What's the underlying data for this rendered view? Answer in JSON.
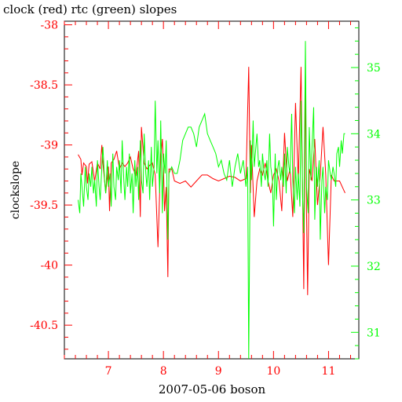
{
  "chart_data": {
    "type": "line",
    "title": "clock (red) rtc (green) slopes",
    "xlabel": "2007-05-06 boson",
    "ylabel": "clockslope",
    "xlim": [
      6.2,
      11.55
    ],
    "ylim_left": [
      -40.78,
      -37.97
    ],
    "ylim_right": [
      30.6,
      35.7
    ],
    "x_ticks": [
      "7",
      "8",
      "9",
      "10",
      "11"
    ],
    "x_tick_values": [
      7,
      8,
      9,
      10,
      11
    ],
    "y_ticks_left": [
      "-38",
      "-38.5",
      "-39",
      "-39.5",
      "-40",
      "-40.5"
    ],
    "y_tick_values_left": [
      -38,
      -38.5,
      -39,
      -39.5,
      -40,
      -40.5
    ],
    "y_ticks_right": [
      "35",
      "34",
      "33",
      "32",
      "31"
    ],
    "y_tick_values_right": [
      35,
      34,
      33,
      32,
      31
    ],
    "grid": false,
    "colors": {
      "clock": "#ff0000",
      "rtc": "#00ff00",
      "axes": "#000000"
    },
    "series": [
      {
        "name": "clock",
        "axis": "left",
        "color": "#ff0000",
        "x": [
          6.45,
          6.5,
          6.52,
          6.55,
          6.6,
          6.62,
          6.65,
          6.7,
          6.75,
          6.8,
          6.85,
          6.88,
          6.9,
          6.95,
          7.0,
          7.02,
          7.05,
          7.1,
          7.15,
          7.2,
          7.25,
          7.3,
          7.35,
          7.4,
          7.45,
          7.5,
          7.55,
          7.58,
          7.6,
          7.65,
          7.7,
          7.75,
          7.8,
          7.85,
          7.9,
          7.95,
          7.98,
          8.0,
          8.02,
          8.05,
          8.08,
          8.1,
          8.15,
          8.2,
          8.3,
          8.4,
          8.5,
          8.6,
          8.7,
          8.8,
          8.9,
          9.0,
          9.1,
          9.2,
          9.3,
          9.4,
          9.5,
          9.55,
          9.58,
          9.6,
          9.65,
          9.7,
          9.75,
          9.8,
          9.85,
          9.9,
          9.95,
          10.0,
          10.05,
          10.1,
          10.15,
          10.2,
          10.25,
          10.3,
          10.35,
          10.4,
          10.45,
          10.5,
          10.55,
          10.58,
          10.6,
          10.62,
          10.65,
          10.7,
          10.75,
          10.8,
          10.85,
          10.9,
          10.95,
          11.0,
          11.05,
          11.1,
          11.15,
          11.2,
          11.25,
          11.3
        ],
        "values": [
          -39.08,
          -39.12,
          -39.25,
          -39.15,
          -39.18,
          -39.32,
          -39.16,
          -39.14,
          -39.3,
          -39.15,
          -39.2,
          -39.0,
          -39.15,
          -39.4,
          -39.18,
          -39.55,
          -39.15,
          -39.12,
          -39.05,
          -39.2,
          -39.15,
          -39.18,
          -39.15,
          -39.1,
          -39.2,
          -39.25,
          -39.05,
          -39.6,
          -38.85,
          -39.15,
          -39.2,
          -39.17,
          -39.15,
          -39.25,
          -39.85,
          -39.1,
          -38.95,
          -39.2,
          -39.55,
          -39.35,
          -40.1,
          -39.2,
          -39.2,
          -39.3,
          -39.32,
          -39.3,
          -39.35,
          -39.3,
          -39.25,
          -39.25,
          -39.28,
          -39.3,
          -39.28,
          -39.26,
          -39.27,
          -39.3,
          -39.28,
          -38.35,
          -39.4,
          -39.0,
          -39.6,
          -39.3,
          -39.2,
          -39.25,
          -39.15,
          -39.3,
          -39.4,
          -39.25,
          -39.2,
          -39.3,
          -39.55,
          -38.9,
          -39.3,
          -39.2,
          -39.6,
          -38.65,
          -39.3,
          -38.35,
          -40.2,
          -38.4,
          -39.55,
          -40.25,
          -39.2,
          -39.3,
          -38.95,
          -39.5,
          -39.25,
          -38.85,
          -39.25,
          -40.0,
          -39.25,
          -39.3,
          -39.3,
          -39.3,
          -39.35,
          -39.4
        ]
      },
      {
        "name": "rtc",
        "axis": "right",
        "color": "#00ff00",
        "x": [
          6.45,
          6.48,
          6.5,
          6.53,
          6.55,
          6.58,
          6.6,
          6.63,
          6.65,
          6.68,
          6.7,
          6.73,
          6.75,
          6.78,
          6.8,
          6.83,
          6.85,
          6.88,
          6.9,
          6.93,
          6.95,
          6.98,
          7.0,
          7.03,
          7.05,
          7.08,
          7.1,
          7.13,
          7.15,
          7.18,
          7.2,
          7.23,
          7.25,
          7.28,
          7.3,
          7.33,
          7.35,
          7.38,
          7.4,
          7.43,
          7.45,
          7.48,
          7.5,
          7.53,
          7.55,
          7.58,
          7.6,
          7.63,
          7.65,
          7.68,
          7.7,
          7.73,
          7.75,
          7.78,
          7.8,
          7.83,
          7.85,
          7.88,
          7.9,
          7.93,
          7.95,
          7.98,
          8.0,
          8.03,
          8.05,
          8.08,
          8.1,
          8.15,
          8.2,
          8.25,
          8.3,
          8.35,
          8.4,
          8.45,
          8.5,
          8.55,
          8.6,
          8.65,
          8.7,
          8.75,
          8.8,
          8.85,
          8.9,
          8.95,
          9.0,
          9.05,
          9.1,
          9.15,
          9.2,
          9.25,
          9.3,
          9.35,
          9.4,
          9.45,
          9.5,
          9.53,
          9.55,
          9.58,
          9.6,
          9.63,
          9.65,
          9.68,
          9.7,
          9.73,
          9.75,
          9.78,
          9.8,
          9.83,
          9.85,
          9.88,
          9.9,
          9.93,
          9.95,
          9.98,
          10.0,
          10.03,
          10.05,
          10.08,
          10.1,
          10.13,
          10.15,
          10.18,
          10.2,
          10.23,
          10.25,
          10.28,
          10.3,
          10.33,
          10.35,
          10.38,
          10.4,
          10.43,
          10.45,
          10.48,
          10.5,
          10.53,
          10.55,
          10.58,
          10.6,
          10.63,
          10.65,
          10.68,
          10.7,
          10.73,
          10.75,
          10.78,
          10.8,
          10.83,
          10.85,
          10.88,
          10.9,
          10.93,
          10.95,
          10.98,
          11.0,
          11.03,
          11.05,
          11.08,
          11.1,
          11.13,
          11.15,
          11.18,
          11.2,
          11.23,
          11.25,
          11.28,
          11.3
        ],
        "values": [
          33.0,
          32.8,
          33.4,
          33.1,
          32.9,
          33.5,
          33.2,
          33.0,
          33.4,
          33.2,
          33.5,
          33.1,
          33.3,
          32.9,
          33.6,
          33.2,
          33.0,
          33.5,
          33.8,
          33.3,
          33.1,
          33.6,
          33.2,
          33.4,
          32.9,
          33.7,
          33.2,
          33.0,
          33.5,
          33.3,
          33.6,
          33.1,
          33.9,
          33.3,
          33.0,
          33.5,
          33.2,
          33.7,
          33.1,
          33.4,
          32.8,
          33.6,
          33.2,
          33.5,
          33.0,
          33.9,
          33.3,
          33.1,
          34.0,
          33.4,
          33.2,
          33.6,
          33.0,
          33.8,
          33.2,
          33.5,
          34.5,
          33.4,
          33.9,
          33.1,
          34.2,
          32.8,
          33.7,
          33.4,
          33.9,
          32.4,
          33.4,
          33.5,
          33.4,
          33.4,
          33.6,
          33.9,
          34.0,
          34.1,
          34.1,
          34.0,
          33.8,
          34.1,
          34.2,
          34.3,
          34.0,
          33.9,
          33.8,
          33.7,
          33.5,
          33.6,
          33.4,
          33.3,
          33.6,
          33.2,
          33.5,
          33.7,
          33.4,
          33.6,
          33.2,
          33.5,
          30.6,
          33.9,
          33.3,
          34.2,
          33.5,
          33.8,
          34.0,
          33.5,
          33.6,
          33.2,
          33.7,
          33.4,
          33.3,
          33.6,
          33.2,
          34.0,
          33.5,
          33.3,
          32.6,
          33.7,
          33.0,
          33.5,
          33.6,
          33.3,
          33.5,
          33.2,
          33.7,
          33.1,
          33.8,
          33.5,
          33.4,
          34.3,
          33.3,
          32.8,
          33.5,
          33.0,
          33.4,
          32.9,
          34.5,
          33.0,
          32.5,
          35.4,
          33.2,
          32.8,
          34.1,
          33.3,
          33.8,
          34.4,
          32.7,
          33.5,
          33.2,
          33.6,
          32.4,
          33.3,
          33.5,
          32.8,
          33.2,
          33.0,
          33.6,
          33.4,
          33.3,
          33.5,
          33.4,
          33.2,
          33.7,
          33.8,
          33.5,
          33.9,
          33.7,
          34.0,
          34.0
        ]
      }
    ]
  }
}
